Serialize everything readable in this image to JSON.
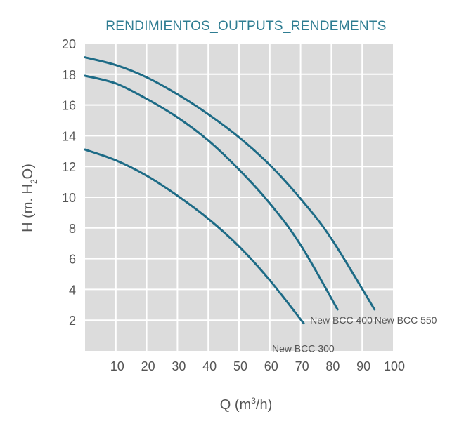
{
  "chart_data": {
    "type": "line",
    "title": "RENDIMIENTOS_OUTPUTS_RENDEMENTS",
    "xlabel": "Q (m³/h)",
    "xlabel_parts": {
      "pre": "Q (m",
      "sup": "3",
      "post": "/h)"
    },
    "ylabel": "H (m. H₂O)",
    "ylabel_parts": {
      "pre": "H (m. H",
      "sub": "2",
      "post": "O)"
    },
    "xlim": [
      0,
      100
    ],
    "ylim": [
      0,
      20
    ],
    "x_ticks": [
      10,
      20,
      30,
      40,
      50,
      60,
      70,
      80,
      90,
      100
    ],
    "y_ticks": [
      2,
      4,
      6,
      8,
      10,
      12,
      14,
      16,
      18,
      20
    ],
    "grid": true,
    "colors": {
      "line": "#1d6b86",
      "plot_bg": "#dcdcdc",
      "grid": "#ffffff",
      "title": "#2f7d92",
      "text": "#555555"
    },
    "series": [
      {
        "name": "New BCC 300",
        "x": [
          0,
          10,
          20,
          30,
          40,
          50,
          60,
          71
        ],
        "y": [
          13.1,
          12.4,
          11.4,
          10.1,
          8.6,
          6.8,
          4.6,
          1.8
        ]
      },
      {
        "name": "New BCC 400",
        "x": [
          0,
          10,
          20,
          30,
          40,
          50,
          60,
          70,
          82
        ],
        "y": [
          17.9,
          17.4,
          16.4,
          15.2,
          13.7,
          11.8,
          9.6,
          6.9,
          2.7
        ]
      },
      {
        "name": "New BCC 550",
        "x": [
          0,
          10,
          20,
          30,
          40,
          50,
          60,
          70,
          80,
          94
        ],
        "y": [
          19.1,
          18.6,
          17.8,
          16.7,
          15.4,
          13.9,
          12.1,
          9.9,
          7.3,
          2.7
        ]
      }
    ]
  }
}
